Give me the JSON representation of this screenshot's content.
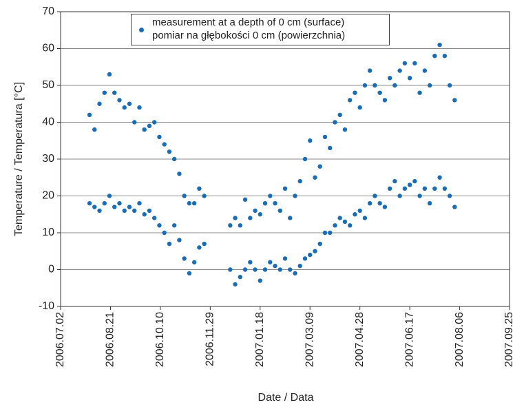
{
  "chart_data": {
    "type": "scatter",
    "x_label": "Date / Data",
    "y_label": "Temperature / Temperatura [°C]",
    "xlim": [
      "2006.07.02",
      "2007.09.25"
    ],
    "xticks": [
      "2006.07.02",
      "2006.08.21",
      "2006.10.10",
      "2006.11.29",
      "2007.01.18",
      "2007.03.09",
      "2007.04.28",
      "2007.06.17",
      "2007.08.06",
      "2007.09.25"
    ],
    "ylim": [
      -10,
      70
    ],
    "yticks": [
      -10,
      0,
      10,
      20,
      30,
      40,
      50,
      60,
      70
    ],
    "grid": true,
    "legend": "top",
    "series": [
      {
        "name": "measurement at a depth of 0 cm (surface)\npomiar na głębokości 0 cm (powierzchnia)",
        "color": "#1a6db5",
        "x": [
          "2006.07.31",
          "2006.07.31",
          "2006.08.05",
          "2006.08.05",
          "2006.08.10",
          "2006.08.10",
          "2006.08.15",
          "2006.08.15",
          "2006.08.20",
          "2006.08.20",
          "2006.08.25",
          "2006.08.25",
          "2006.08.30",
          "2006.08.30",
          "2006.09.04",
          "2006.09.04",
          "2006.09.09",
          "2006.09.09",
          "2006.09.14",
          "2006.09.14",
          "2006.09.19",
          "2006.09.19",
          "2006.09.24",
          "2006.09.24",
          "2006.09.29",
          "2006.09.29",
          "2006.10.04",
          "2006.10.04",
          "2006.10.09",
          "2006.10.09",
          "2006.10.14",
          "2006.10.14",
          "2006.10.19",
          "2006.10.19",
          "2006.10.24",
          "2006.10.24",
          "2006.10.29",
          "2006.10.29",
          "2006.11.03",
          "2006.11.03",
          "2006.11.08",
          "2006.11.08",
          "2006.11.13",
          "2006.11.13",
          "2006.11.18",
          "2006.11.18",
          "2006.11.23",
          "2006.11.23",
          "2006.12.19",
          "2006.12.19",
          "2006.12.24",
          "2006.12.24",
          "2006.12.29",
          "2006.12.29",
          "2007.01.03",
          "2007.01.03",
          "2007.01.08",
          "2007.01.08",
          "2007.01.13",
          "2007.01.13",
          "2007.01.18",
          "2007.01.18",
          "2007.01.23",
          "2007.01.23",
          "2007.01.28",
          "2007.01.28",
          "2007.02.02",
          "2007.02.02",
          "2007.02.07",
          "2007.02.07",
          "2007.02.12",
          "2007.02.12",
          "2007.02.17",
          "2007.02.17",
          "2007.02.22",
          "2007.02.22",
          "2007.02.27",
          "2007.02.27",
          "2007.03.04",
          "2007.03.04",
          "2007.03.09",
          "2007.03.09",
          "2007.03.14",
          "2007.03.14",
          "2007.03.19",
          "2007.03.19",
          "2007.03.24",
          "2007.03.24",
          "2007.03.29",
          "2007.03.29",
          "2007.04.03",
          "2007.04.03",
          "2007.04.08",
          "2007.04.08",
          "2007.04.13",
          "2007.04.13",
          "2007.04.18",
          "2007.04.18",
          "2007.04.23",
          "2007.04.23",
          "2007.04.28",
          "2007.04.28",
          "2007.05.03",
          "2007.05.03",
          "2007.05.08",
          "2007.05.08",
          "2007.05.13",
          "2007.05.13",
          "2007.05.18",
          "2007.05.18",
          "2007.05.23",
          "2007.05.23",
          "2007.05.28",
          "2007.05.28",
          "2007.06.02",
          "2007.06.02",
          "2007.06.07",
          "2007.06.07",
          "2007.06.12",
          "2007.06.12",
          "2007.06.17",
          "2007.06.17",
          "2007.06.22",
          "2007.06.22",
          "2007.06.27",
          "2007.06.27",
          "2007.07.02",
          "2007.07.02",
          "2007.07.07",
          "2007.07.07",
          "2007.07.12",
          "2007.07.12",
          "2007.07.17",
          "2007.07.17",
          "2007.07.22",
          "2007.07.22",
          "2007.07.27",
          "2007.07.27",
          "2007.08.01",
          "2007.08.01"
        ],
        "values": [
          18,
          42,
          17,
          38,
          16,
          45,
          18,
          48,
          20,
          53,
          17,
          48,
          18,
          46,
          16,
          44,
          17,
          45,
          16,
          40,
          18,
          44,
          15,
          38,
          16,
          39,
          14,
          40,
          12,
          36,
          10,
          34,
          7,
          32,
          12,
          30,
          8,
          26,
          3,
          20,
          -1,
          18,
          2,
          18,
          6,
          22,
          7,
          20,
          0,
          12,
          -4,
          14,
          -2,
          12,
          0,
          19,
          2,
          14,
          0,
          16,
          -3,
          15,
          0,
          18,
          2,
          20,
          1,
          18,
          0,
          16,
          3,
          22,
          0,
          14,
          -1,
          20,
          1,
          24,
          3,
          30,
          4,
          35,
          5,
          25,
          7,
          28,
          10,
          36,
          10,
          33,
          12,
          40,
          14,
          42,
          13,
          38,
          12,
          46,
          15,
          48,
          16,
          44,
          14,
          50,
          18,
          54,
          20,
          50,
          18,
          48,
          17,
          46,
          22,
          52,
          24,
          50,
          20,
          54,
          22,
          56,
          23,
          52,
          24,
          56,
          20,
          48,
          22,
          54,
          18,
          50,
          22,
          58,
          25,
          61,
          22,
          58,
          20,
          50,
          17,
          46
        ]
      }
    ]
  }
}
